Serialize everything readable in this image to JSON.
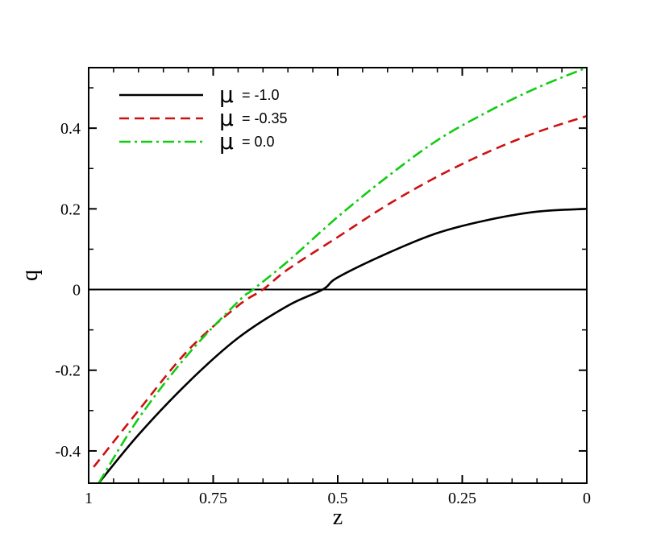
{
  "chart_data": {
    "type": "line",
    "title": "",
    "xlabel": "z",
    "ylabel": "q",
    "xlim": [
      1,
      0
    ],
    "ylim": [
      -0.48,
      0.55
    ],
    "x_reversed": true,
    "grid": false,
    "legend_position": "top-left",
    "x_ticks": [
      {
        "value": 1,
        "label": "1"
      },
      {
        "value": 0.75,
        "label": "0.75"
      },
      {
        "value": 0.5,
        "label": "0.5"
      },
      {
        "value": 0.25,
        "label": "0.25"
      },
      {
        "value": 0,
        "label": "0"
      }
    ],
    "y_ticks": [
      {
        "value": -0.4,
        "label": "-0.4"
      },
      {
        "value": -0.2,
        "label": "-0.2"
      },
      {
        "value": 0,
        "label": "0"
      },
      {
        "value": 0.2,
        "label": "0.2"
      },
      {
        "value": 0.4,
        "label": "0.4"
      }
    ],
    "reference_line": {
      "y": 0,
      "color": "#000000"
    },
    "series": [
      {
        "name": "μ = -1.0",
        "symbol": "μ",
        "value_label": "= -1.0",
        "color": "#000000",
        "dash": "solid",
        "x": [
          0.98,
          0.9,
          0.8,
          0.7,
          0.6,
          0.53,
          0.5,
          0.4,
          0.3,
          0.2,
          0.1,
          0.0
        ],
        "y": [
          -0.48,
          -0.36,
          -0.23,
          -0.12,
          -0.04,
          0.0,
          0.03,
          0.09,
          0.14,
          0.172,
          0.193,
          0.2
        ]
      },
      {
        "name": "μ = -0.35",
        "symbol": "μ",
        "value_label": "= -0.35",
        "color": "#cc1111",
        "dash": "dashed",
        "x": [
          0.99,
          0.9,
          0.8,
          0.7,
          0.65,
          0.6,
          0.5,
          0.4,
          0.3,
          0.2,
          0.1,
          0.0
        ],
        "y": [
          -0.44,
          -0.3,
          -0.15,
          -0.04,
          0.0,
          0.05,
          0.13,
          0.21,
          0.28,
          0.34,
          0.39,
          0.43
        ]
      },
      {
        "name": "μ = 0.0",
        "symbol": "μ",
        "value_label": "= 0.0",
        "color": "#11cc11",
        "dash": "dashdot",
        "x": [
          0.98,
          0.9,
          0.8,
          0.7,
          0.67,
          0.6,
          0.5,
          0.4,
          0.3,
          0.2,
          0.1,
          0.0
        ],
        "y": [
          -0.48,
          -0.32,
          -0.16,
          -0.03,
          0.0,
          0.07,
          0.18,
          0.28,
          0.37,
          0.44,
          0.5,
          0.55
        ]
      }
    ]
  }
}
